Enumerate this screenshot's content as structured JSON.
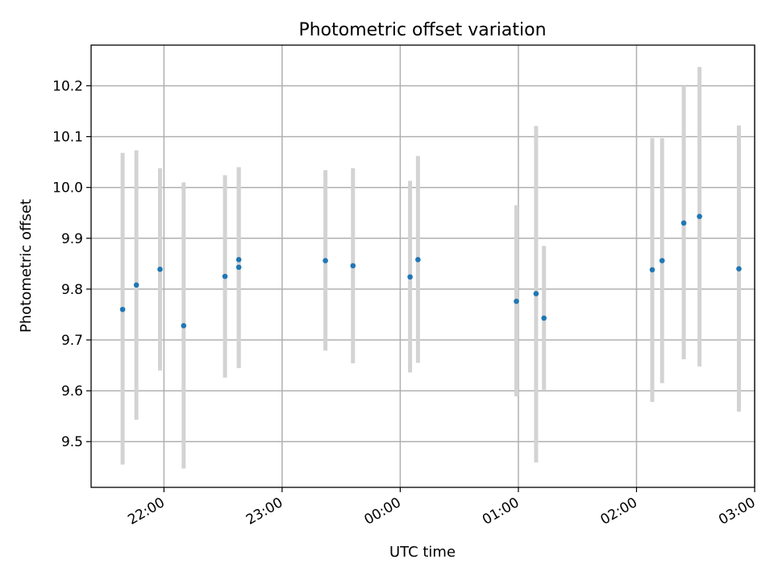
{
  "chart_data": {
    "type": "scatter",
    "title": "Photometric offset variation",
    "xlabel": "UTC time",
    "ylabel": "Photometric offset",
    "grid": true,
    "legend": "none",
    "x_axis": "time",
    "x_ticks": [
      "22:00",
      "23:00",
      "00:00",
      "01:00",
      "02:00",
      "03:00"
    ],
    "xlim": [
      "21:23",
      "03:00"
    ],
    "ylim": [
      9.41,
      10.28
    ],
    "y_ticks": [
      9.5,
      9.6,
      9.7,
      9.8,
      9.9,
      10.0,
      10.1,
      10.2
    ],
    "point_color": "#1f77b4",
    "errorbar_color": "#d3d3d3",
    "points": [
      {
        "time": "21:39",
        "y": 9.76,
        "err_low": 9.455,
        "err_high": 10.068
      },
      {
        "time": "21:46",
        "y": 9.808,
        "err_low": 9.543,
        "err_high": 10.073
      },
      {
        "time": "21:58",
        "y": 9.839,
        "err_low": 9.64,
        "err_high": 10.038
      },
      {
        "time": "22:10",
        "y": 9.728,
        "err_low": 9.447,
        "err_high": 10.01
      },
      {
        "time": "22:31",
        "y": 9.825,
        "err_low": 9.626,
        "err_high": 10.024
      },
      {
        "time": "22:38",
        "y": 9.858,
        "err_low": 9.645,
        "err_high": 10.04
      },
      {
        "time": "22:38",
        "y": 9.843,
        "err_low": 9.645,
        "err_high": 10.04
      },
      {
        "time": "23:22",
        "y": 9.856,
        "err_low": 9.679,
        "err_high": 10.034
      },
      {
        "time": "23:36",
        "y": 9.846,
        "err_low": 9.654,
        "err_high": 10.038
      },
      {
        "time": "00:05",
        "y": 9.824,
        "err_low": 9.636,
        "err_high": 10.013
      },
      {
        "time": "00:09",
        "y": 9.858,
        "err_low": 9.655,
        "err_high": 10.062
      },
      {
        "time": "00:59",
        "y": 9.776,
        "err_low": 9.589,
        "err_high": 9.965
      },
      {
        "time": "01:09",
        "y": 9.791,
        "err_low": 9.459,
        "err_high": 10.121
      },
      {
        "time": "01:13",
        "y": 9.743,
        "err_low": 9.602,
        "err_high": 9.885
      },
      {
        "time": "02:08",
        "y": 9.838,
        "err_low": 9.578,
        "err_high": 10.097
      },
      {
        "time": "02:13",
        "y": 9.856,
        "err_low": 9.615,
        "err_high": 10.097
      },
      {
        "time": "02:24",
        "y": 9.93,
        "err_low": 9.662,
        "err_high": 10.2
      },
      {
        "time": "02:32",
        "y": 9.943,
        "err_low": 9.648,
        "err_high": 10.237
      },
      {
        "time": "02:52",
        "y": 9.84,
        "err_low": 9.559,
        "err_high": 10.122
      }
    ]
  }
}
